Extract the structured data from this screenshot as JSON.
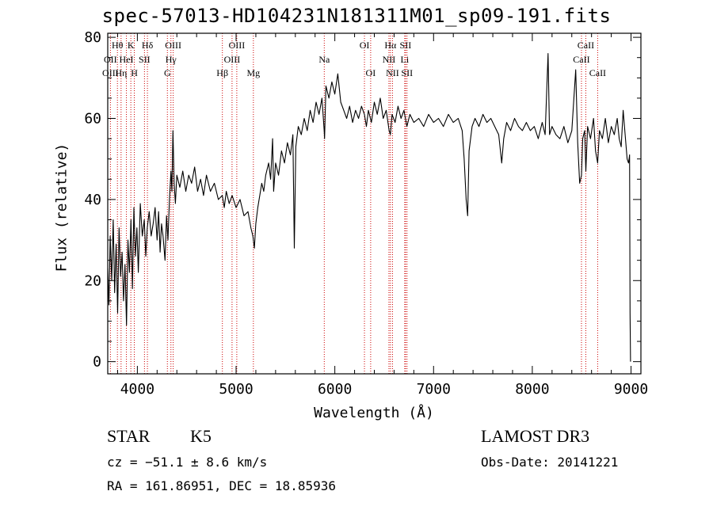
{
  "chart_data": {
    "type": "line",
    "title": "spec-57013-HD104231N181311M01_sp09-191.fits",
    "xlabel": "Wavelength (Å)",
    "ylabel": "Flux (relative)",
    "xlim": [
      3700,
      9100
    ],
    "ylim": [
      -3,
      81
    ],
    "xticks": [
      4000,
      5000,
      6000,
      7000,
      8000,
      9000
    ],
    "yticks": [
      0,
      20,
      40,
      60,
      80
    ],
    "series": [
      {
        "name": "flux",
        "points": [
          [
            3700,
            23
          ],
          [
            3712,
            14
          ],
          [
            3725,
            31
          ],
          [
            3740,
            20
          ],
          [
            3755,
            35
          ],
          [
            3770,
            17
          ],
          [
            3785,
            29
          ],
          [
            3800,
            12
          ],
          [
            3815,
            33
          ],
          [
            3830,
            21
          ],
          [
            3845,
            27
          ],
          [
            3860,
            15
          ],
          [
            3875,
            24
          ],
          [
            3890,
            9
          ],
          [
            3905,
            30
          ],
          [
            3920,
            22
          ],
          [
            3935,
            35
          ],
          [
            3950,
            18
          ],
          [
            3965,
            38
          ],
          [
            3980,
            26
          ],
          [
            3995,
            33
          ],
          [
            4010,
            22
          ],
          [
            4030,
            39
          ],
          [
            4050,
            31
          ],
          [
            4070,
            35
          ],
          [
            4085,
            26
          ],
          [
            4100,
            33
          ],
          [
            4120,
            37
          ],
          [
            4140,
            31
          ],
          [
            4160,
            34
          ],
          [
            4180,
            38
          ],
          [
            4200,
            30
          ],
          [
            4215,
            37
          ],
          [
            4230,
            27
          ],
          [
            4245,
            34
          ],
          [
            4260,
            31
          ],
          [
            4280,
            25
          ],
          [
            4295,
            36
          ],
          [
            4310,
            30
          ],
          [
            4325,
            40
          ],
          [
            4340,
            47
          ],
          [
            4350,
            42
          ],
          [
            4360,
            57
          ],
          [
            4372,
            44
          ],
          [
            4385,
            39
          ],
          [
            4400,
            46
          ],
          [
            4430,
            43
          ],
          [
            4460,
            47
          ],
          [
            4490,
            42
          ],
          [
            4520,
            46
          ],
          [
            4550,
            44
          ],
          [
            4580,
            48
          ],
          [
            4610,
            42
          ],
          [
            4640,
            45
          ],
          [
            4670,
            41
          ],
          [
            4700,
            46
          ],
          [
            4740,
            42
          ],
          [
            4780,
            44
          ],
          [
            4820,
            40
          ],
          [
            4860,
            41
          ],
          [
            4880,
            38
          ],
          [
            4900,
            42
          ],
          [
            4930,
            39
          ],
          [
            4960,
            41
          ],
          [
            5000,
            38
          ],
          [
            5040,
            40
          ],
          [
            5080,
            36
          ],
          [
            5120,
            37
          ],
          [
            5150,
            33
          ],
          [
            5170,
            31
          ],
          [
            5185,
            28
          ],
          [
            5200,
            34
          ],
          [
            5220,
            38
          ],
          [
            5240,
            41
          ],
          [
            5260,
            44
          ],
          [
            5280,
            42
          ],
          [
            5300,
            46
          ],
          [
            5330,
            49
          ],
          [
            5350,
            45
          ],
          [
            5370,
            55
          ],
          [
            5380,
            42
          ],
          [
            5400,
            49
          ],
          [
            5430,
            46
          ],
          [
            5460,
            52
          ],
          [
            5490,
            49
          ],
          [
            5520,
            54
          ],
          [
            5550,
            51
          ],
          [
            5575,
            56
          ],
          [
            5590,
            28
          ],
          [
            5605,
            53
          ],
          [
            5630,
            58
          ],
          [
            5660,
            56
          ],
          [
            5690,
            60
          ],
          [
            5720,
            57
          ],
          [
            5750,
            62
          ],
          [
            5780,
            59
          ],
          [
            5810,
            64
          ],
          [
            5840,
            61
          ],
          [
            5870,
            65
          ],
          [
            5892,
            57
          ],
          [
            5896,
            55
          ],
          [
            5910,
            68
          ],
          [
            5940,
            65
          ],
          [
            5970,
            69
          ],
          [
            6000,
            66
          ],
          [
            6030,
            71
          ],
          [
            6060,
            64
          ],
          [
            6090,
            62
          ],
          [
            6120,
            60
          ],
          [
            6150,
            63
          ],
          [
            6180,
            59
          ],
          [
            6210,
            62
          ],
          [
            6240,
            60
          ],
          [
            6270,
            63
          ],
          [
            6300,
            61
          ],
          [
            6320,
            58
          ],
          [
            6340,
            62
          ],
          [
            6370,
            59
          ],
          [
            6400,
            64
          ],
          [
            6430,
            61
          ],
          [
            6460,
            65
          ],
          [
            6490,
            60
          ],
          [
            6520,
            62
          ],
          [
            6550,
            57
          ],
          [
            6563,
            56
          ],
          [
            6580,
            61
          ],
          [
            6610,
            59
          ],
          [
            6640,
            63
          ],
          [
            6670,
            60
          ],
          [
            6700,
            62
          ],
          [
            6730,
            58
          ],
          [
            6760,
            61
          ],
          [
            6800,
            59
          ],
          [
            6850,
            60
          ],
          [
            6900,
            58
          ],
          [
            6950,
            61
          ],
          [
            7000,
            59
          ],
          [
            7050,
            60
          ],
          [
            7100,
            58
          ],
          [
            7150,
            61
          ],
          [
            7200,
            59
          ],
          [
            7250,
            60
          ],
          [
            7290,
            57
          ],
          [
            7310,
            50
          ],
          [
            7330,
            40
          ],
          [
            7345,
            36
          ],
          [
            7360,
            52
          ],
          [
            7390,
            58
          ],
          [
            7420,
            60
          ],
          [
            7460,
            58
          ],
          [
            7500,
            61
          ],
          [
            7540,
            59
          ],
          [
            7580,
            60
          ],
          [
            7620,
            58
          ],
          [
            7660,
            56
          ],
          [
            7690,
            49
          ],
          [
            7710,
            55
          ],
          [
            7740,
            59
          ],
          [
            7780,
            57
          ],
          [
            7820,
            60
          ],
          [
            7860,
            58
          ],
          [
            7900,
            57
          ],
          [
            7940,
            59
          ],
          [
            7980,
            57
          ],
          [
            8020,
            58
          ],
          [
            8060,
            55
          ],
          [
            8100,
            59
          ],
          [
            8130,
            56
          ],
          [
            8160,
            76
          ],
          [
            8175,
            56
          ],
          [
            8200,
            58
          ],
          [
            8240,
            56
          ],
          [
            8280,
            55
          ],
          [
            8320,
            58
          ],
          [
            8360,
            54
          ],
          [
            8400,
            57
          ],
          [
            8440,
            72
          ],
          [
            8460,
            54
          ],
          [
            8480,
            44
          ],
          [
            8498,
            46
          ],
          [
            8510,
            55
          ],
          [
            8530,
            57
          ],
          [
            8542,
            47
          ],
          [
            8560,
            58
          ],
          [
            8590,
            55
          ],
          [
            8620,
            60
          ],
          [
            8640,
            52
          ],
          [
            8662,
            49
          ],
          [
            8680,
            57
          ],
          [
            8710,
            55
          ],
          [
            8740,
            60
          ],
          [
            8770,
            54
          ],
          [
            8800,
            58
          ],
          [
            8830,
            56
          ],
          [
            8860,
            60
          ],
          [
            8880,
            55
          ],
          [
            8900,
            53
          ],
          [
            8920,
            62
          ],
          [
            8940,
            56
          ],
          [
            8960,
            50
          ],
          [
            8975,
            49
          ],
          [
            8985,
            51
          ],
          [
            8990,
            12
          ],
          [
            8995,
            0
          ]
        ]
      }
    ],
    "line_labels": [
      {
        "label": "Hθ",
        "wavelength": 3798,
        "row": 0
      },
      {
        "label": "OII",
        "wavelength": 3727,
        "row": 1
      },
      {
        "label": "OIII",
        "wavelength": 3727,
        "row": 2
      },
      {
        "label": "Hη",
        "wavelength": 3835,
        "row": 2
      },
      {
        "label": "K",
        "wavelength": 3934,
        "row": 0
      },
      {
        "label": "HeI",
        "wavelength": 3889,
        "row": 1
      },
      {
        "label": "H",
        "wavelength": 3969,
        "row": 2
      },
      {
        "label": "Hδ",
        "wavelength": 4102,
        "row": 0
      },
      {
        "label": "SII",
        "wavelength": 4072,
        "row": 1
      },
      {
        "label": "OIII",
        "wavelength": 4363,
        "row": 0
      },
      {
        "label": "Hγ",
        "wavelength": 4340,
        "row": 1
      },
      {
        "label": "G",
        "wavelength": 4304,
        "row": 2
      },
      {
        "label": "OIII",
        "wavelength": 5007,
        "row": 0
      },
      {
        "label": "OIII",
        "wavelength": 4959,
        "row": 1
      },
      {
        "label": "Hβ",
        "wavelength": 4861,
        "row": 2
      },
      {
        "label": "Mg",
        "wavelength": 5175,
        "row": 2
      },
      {
        "label": "Na",
        "wavelength": 5893,
        "row": 1
      },
      {
        "label": "OI",
        "wavelength": 6300,
        "row": 0
      },
      {
        "label": "OI",
        "wavelength": 6363,
        "row": 2
      },
      {
        "label": "Hα",
        "wavelength": 6563,
        "row": 0
      },
      {
        "label": "SII",
        "wavelength": 6716,
        "row": 0
      },
      {
        "label": "NII",
        "wavelength": 6548,
        "row": 1
      },
      {
        "label": "Li",
        "wavelength": 6708,
        "row": 1
      },
      {
        "label": "NII",
        "wavelength": 6584,
        "row": 2
      },
      {
        "label": "SII",
        "wavelength": 6731,
        "row": 2
      },
      {
        "label": "CaII",
        "wavelength": 8542,
        "row": 0
      },
      {
        "label": "CaII",
        "wavelength": 8498,
        "row": 1
      },
      {
        "label": "CaII",
        "wavelength": 8662,
        "row": 2
      }
    ],
    "marker_lines": [
      3727,
      3798,
      3835,
      3889,
      3934,
      3969,
      4072,
      4102,
      4304,
      4340,
      4363,
      4861,
      4959,
      5007,
      5175,
      5893,
      6300,
      6363,
      6548,
      6563,
      6584,
      6708,
      6716,
      6731,
      8498,
      8542,
      8662
    ]
  },
  "info": {
    "class": "STAR",
    "subclass": "K5",
    "cz": "cz = −51.1 ± 8.6 km/s",
    "coords": "RA = 161.86951, DEC =  18.85936",
    "survey": "LAMOST DR3",
    "obs_date": "Obs-Date: 20141221"
  },
  "colors": {
    "marker": "#cc0000",
    "line": "#000000",
    "background": "#ffffff"
  }
}
